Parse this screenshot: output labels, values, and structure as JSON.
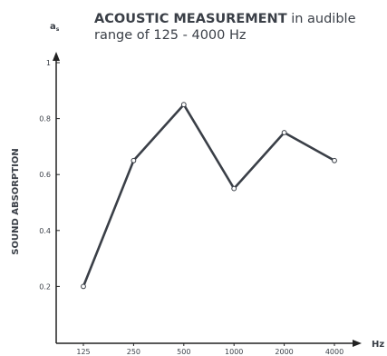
{
  "chart_data": {
    "type": "line",
    "title_bold": "ACOUSTIC MEASUREMENT",
    "title_rest": " in audible range of 125 - 4000 Hz",
    "xlabel": "Hz",
    "ylabel": "SOUND ABSORPTION",
    "y_symbol": "a",
    "y_symbol_sub": "s",
    "x": [
      125,
      250,
      500,
      1000,
      2000,
      4000
    ],
    "x_tick_labels": [
      "125",
      "250",
      "500",
      "1000",
      "2000",
      "4000"
    ],
    "y_ticks": [
      0.2,
      0.4,
      0.6,
      0.8,
      1
    ],
    "y_tick_labels": [
      "0.2",
      "0.4",
      "0.6",
      "0.8",
      "1"
    ],
    "series": [
      {
        "values": [
          0.2,
          0.65,
          0.85,
          0.55,
          0.75,
          0.65
        ]
      }
    ],
    "xscale": "log",
    "grid": false,
    "colors": {
      "line": "#3a3f47",
      "axis": "#222222",
      "marker_fill": "#ffffff"
    }
  }
}
